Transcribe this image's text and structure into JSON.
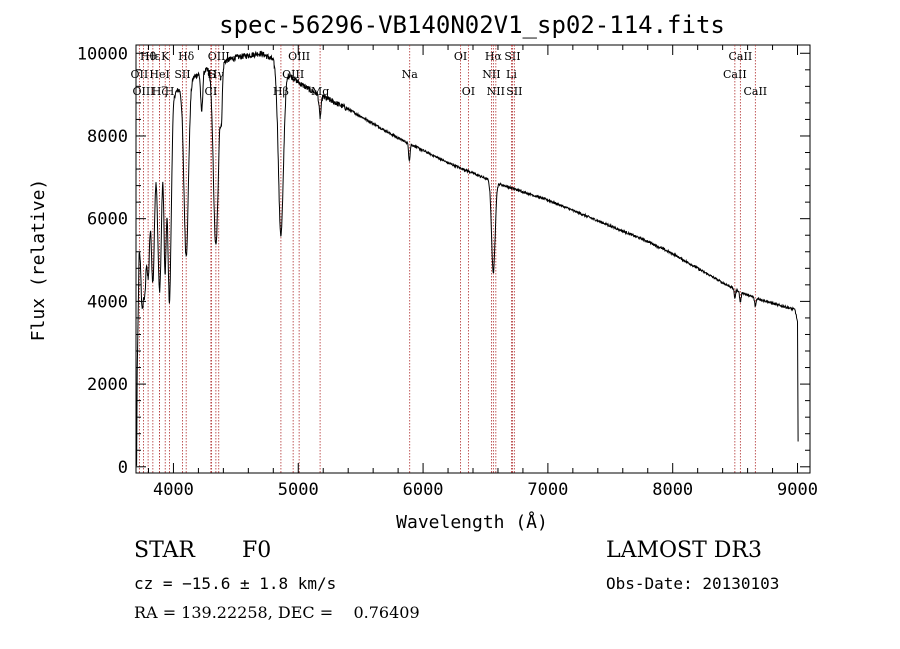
{
  "colors": {
    "background": "#ffffff",
    "ink": "#000000",
    "marker": "#b03030"
  },
  "chart_data": {
    "type": "line",
    "title": "spec-56296-VB140N02V1_sp02-114.fits",
    "xlabel": "Wavelength (Å)",
    "ylabel": "Flux (relative)",
    "xlim": [
      3700,
      9100
    ],
    "ylim": [
      -150,
      10200
    ],
    "xticks": [
      4000,
      5000,
      6000,
      7000,
      8000,
      9000
    ],
    "yticks": [
      0,
      2000,
      4000,
      6000,
      8000,
      10000
    ],
    "x_minor_step": 200,
    "y_minor_step": 400,
    "series": [
      {
        "name": "flux",
        "continuum_points": [
          [
            3705,
            0
          ],
          [
            3710,
            2300
          ],
          [
            3725,
            5200
          ],
          [
            3760,
            6400
          ],
          [
            3800,
            7800
          ],
          [
            3850,
            8300
          ],
          [
            3900,
            8600
          ],
          [
            3950,
            8800
          ],
          [
            4000,
            9000
          ],
          [
            4100,
            9300
          ],
          [
            4200,
            9500
          ],
          [
            4300,
            9650
          ],
          [
            4400,
            9800
          ],
          [
            4500,
            9900
          ],
          [
            4600,
            9950
          ],
          [
            4700,
            10000
          ],
          [
            4800,
            9850
          ],
          [
            4900,
            9550
          ],
          [
            5000,
            9300
          ],
          [
            5100,
            9100
          ],
          [
            5200,
            8950
          ],
          [
            5400,
            8650
          ],
          [
            5600,
            8300
          ],
          [
            5800,
            7950
          ],
          [
            6000,
            7650
          ],
          [
            6200,
            7350
          ],
          [
            6400,
            7100
          ],
          [
            6600,
            6850
          ],
          [
            6800,
            6650
          ],
          [
            7000,
            6450
          ],
          [
            7200,
            6200
          ],
          [
            7400,
            5950
          ],
          [
            7600,
            5700
          ],
          [
            7800,
            5450
          ],
          [
            8000,
            5150
          ],
          [
            8200,
            4800
          ],
          [
            8400,
            4450
          ],
          [
            8600,
            4150
          ],
          [
            8800,
            3950
          ],
          [
            8980,
            3800
          ],
          [
            9000,
            3500
          ],
          [
            9005,
            600
          ]
        ],
        "absorption_lines": [
          [
            3750,
            0.35,
            10
          ],
          [
            3771,
            0.35,
            10
          ],
          [
            3798,
            0.4,
            12
          ],
          [
            3835,
            0.45,
            14
          ],
          [
            3889,
            0.5,
            16
          ],
          [
            3933,
            0.45,
            10
          ],
          [
            3968,
            0.55,
            14
          ],
          [
            4102,
            0.45,
            18
          ],
          [
            4226,
            0.1,
            8
          ],
          [
            4340,
            0.45,
            20
          ],
          [
            4384,
            0.12,
            8
          ],
          [
            4861,
            0.42,
            20
          ],
          [
            5175,
            0.06,
            8
          ],
          [
            5890,
            0.05,
            6
          ],
          [
            6563,
            0.32,
            14
          ],
          [
            8498,
            0.05,
            6
          ],
          [
            8542,
            0.06,
            6
          ],
          [
            8662,
            0.05,
            6
          ]
        ]
      }
    ],
    "line_markers": [
      {
        "label": "Hθ",
        "wavelength": 3797,
        "row": 0
      },
      {
        "label": "OII",
        "wavelength": 3727,
        "row": 1
      },
      {
        "label": "OIII",
        "wavelength": 3760,
        "row": 2
      },
      {
        "label": "Hε",
        "wavelength": 3835,
        "row": 0
      },
      {
        "label": "HeI",
        "wavelength": 3889,
        "row": 1
      },
      {
        "label": "Hζ",
        "wavelength": 3889,
        "row": 2
      },
      {
        "label": "K",
        "wavelength": 3934,
        "row": 0
      },
      {
        "label": "H",
        "wavelength": 3969,
        "row": 2
      },
      {
        "label": "Hδ",
        "wavelength": 4102,
        "row": 0
      },
      {
        "label": "SII",
        "wavelength": 4072,
        "row": 1
      },
      {
        "label": "G",
        "wavelength": 4305,
        "row": 1
      },
      {
        "label": "OIII",
        "wavelength": 4363,
        "row": 0
      },
      {
        "label": "Hγ",
        "wavelength": 4340,
        "row": 1
      },
      {
        "label": "CI",
        "wavelength": 4300,
        "row": 2
      },
      {
        "label": "Hβ",
        "wavelength": 4861,
        "row": 2
      },
      {
        "label": "OIII",
        "wavelength": 5007,
        "row": 0
      },
      {
        "label": "OIII",
        "wavelength": 4959,
        "row": 1
      },
      {
        "label": "Mg",
        "wavelength": 5175,
        "row": 2
      },
      {
        "label": "Na",
        "wavelength": 5893,
        "row": 1
      },
      {
        "label": "OI",
        "wavelength": 6300,
        "row": 0
      },
      {
        "label": "OI",
        "wavelength": 6363,
        "row": 2
      },
      {
        "label": "Hα",
        "wavelength": 6563,
        "row": 0
      },
      {
        "label": "NII",
        "wavelength": 6548,
        "row": 1
      },
      {
        "label": "NII",
        "wavelength": 6583,
        "row": 2
      },
      {
        "label": "SII",
        "wavelength": 6716,
        "row": 0
      },
      {
        "label": "Li",
        "wavelength": 6708,
        "row": 1
      },
      {
        "label": "SII",
        "wavelength": 6731,
        "row": 2
      },
      {
        "label": "CaII",
        "wavelength": 8542,
        "row": 0
      },
      {
        "label": "CaII",
        "wavelength": 8498,
        "row": 1
      },
      {
        "label": "CaII",
        "wavelength": 8662,
        "row": 2
      }
    ]
  },
  "info": {
    "object_class": "STAR",
    "subclass": "F0",
    "survey": "LAMOST DR3",
    "redshift": "cz = −15.6 ± 1.8 km/s",
    "obs_date": "Obs-Date: 20130103",
    "coords": "RA = 139.22258, DEC =    0.76409"
  }
}
